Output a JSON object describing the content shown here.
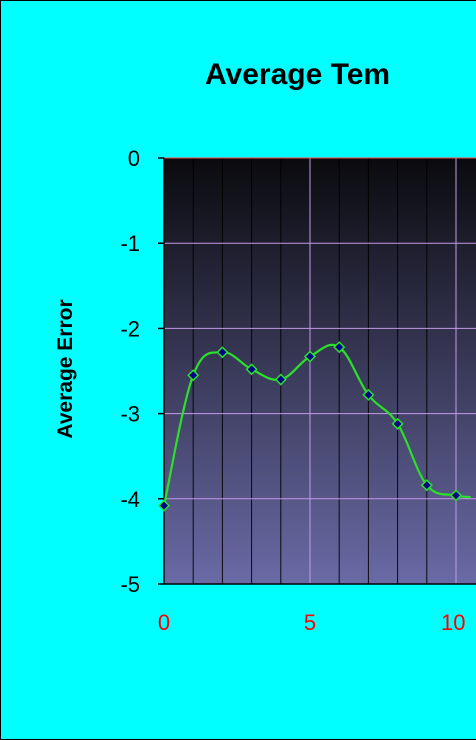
{
  "chart_data": {
    "type": "line",
    "title": "Average Tem",
    "ylabel": "Average Error",
    "ylim": [
      -5,
      0
    ],
    "y_ticks": [
      "0",
      "-1",
      "-2",
      "-3",
      "-4",
      "-5"
    ],
    "x_ticks": [
      "0",
      "5",
      "10"
    ],
    "grid": true,
    "x": [
      0,
      1,
      2,
      3,
      4,
      5,
      6,
      7,
      8,
      9,
      10,
      10.5
    ],
    "values": [
      -4.08,
      -2.55,
      -2.28,
      -2.48,
      -2.6,
      -2.33,
      -2.22,
      -2.78,
      -3.12,
      -3.84,
      -3.96,
      -3.98
    ],
    "markers_count": 11,
    "colors": {
      "background": "#00FFFF",
      "plot_top": "#0A0A0E",
      "plot_bottom": "#6A6AA6",
      "line": "#2BE02B",
      "marker": "#00008B",
      "grid": "#C39AE8",
      "x_tick_labels": "#FF0000",
      "axis_top": "#FF4444"
    }
  }
}
